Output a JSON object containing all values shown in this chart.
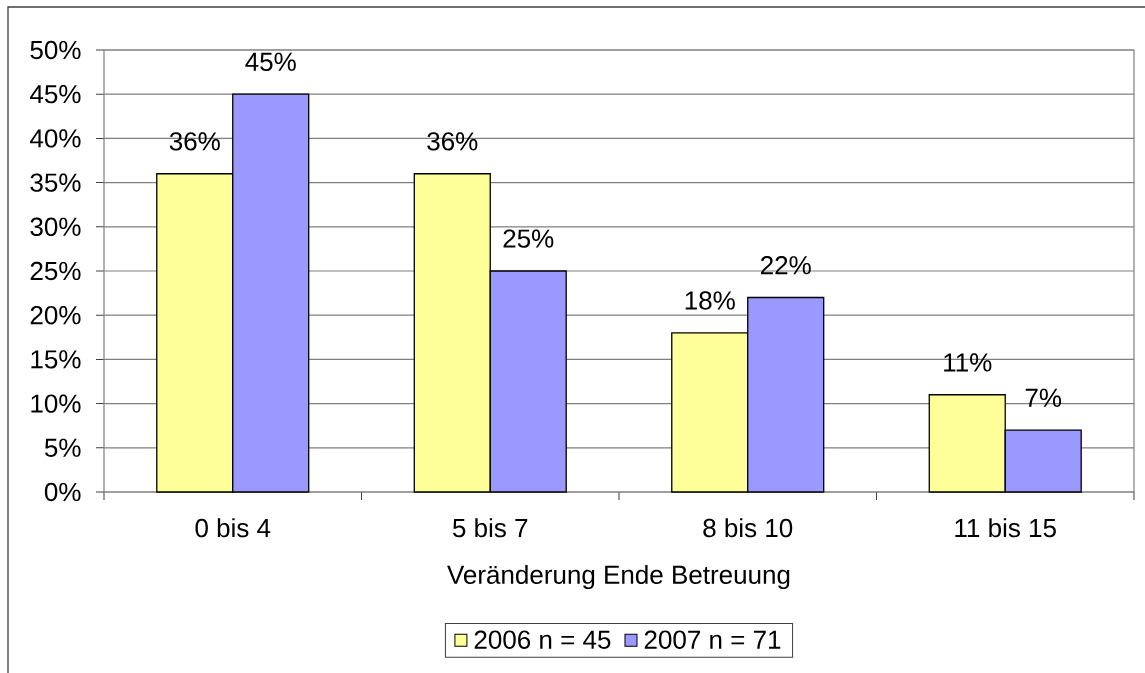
{
  "chart_data": {
    "type": "bar",
    "xlabel": "Veränderung Ende Betreuung",
    "categories": [
      "0 bis 4",
      "5 bis 7",
      "8 bis 10",
      "11 bis 15"
    ],
    "series": [
      {
        "name": "2006 n = 45",
        "color": "#ffff99",
        "values": [
          36,
          36,
          18,
          11
        ],
        "value_labels": [
          "36%",
          "36%",
          "18%",
          "11%"
        ]
      },
      {
        "name": "2007 n = 71",
        "color": "#9999ff",
        "values": [
          45,
          25,
          22,
          7
        ],
        "value_labels": [
          "45%",
          "25%",
          "22%",
          "7%"
        ]
      }
    ],
    "ylim": [
      0,
      50
    ],
    "yticks": [
      {
        "value": 0,
        "label": "0%"
      },
      {
        "value": 5,
        "label": "5%"
      },
      {
        "value": 10,
        "label": "10%"
      },
      {
        "value": 15,
        "label": "15%"
      },
      {
        "value": 20,
        "label": "20%"
      },
      {
        "value": 25,
        "label": "25%"
      },
      {
        "value": 30,
        "label": "30%"
      },
      {
        "value": 35,
        "label": "35%"
      },
      {
        "value": 40,
        "label": "40%"
      },
      {
        "value": 45,
        "label": "45%"
      },
      {
        "value": 50,
        "label": "50%"
      }
    ],
    "grid": "y",
    "legend": "bottom"
  }
}
